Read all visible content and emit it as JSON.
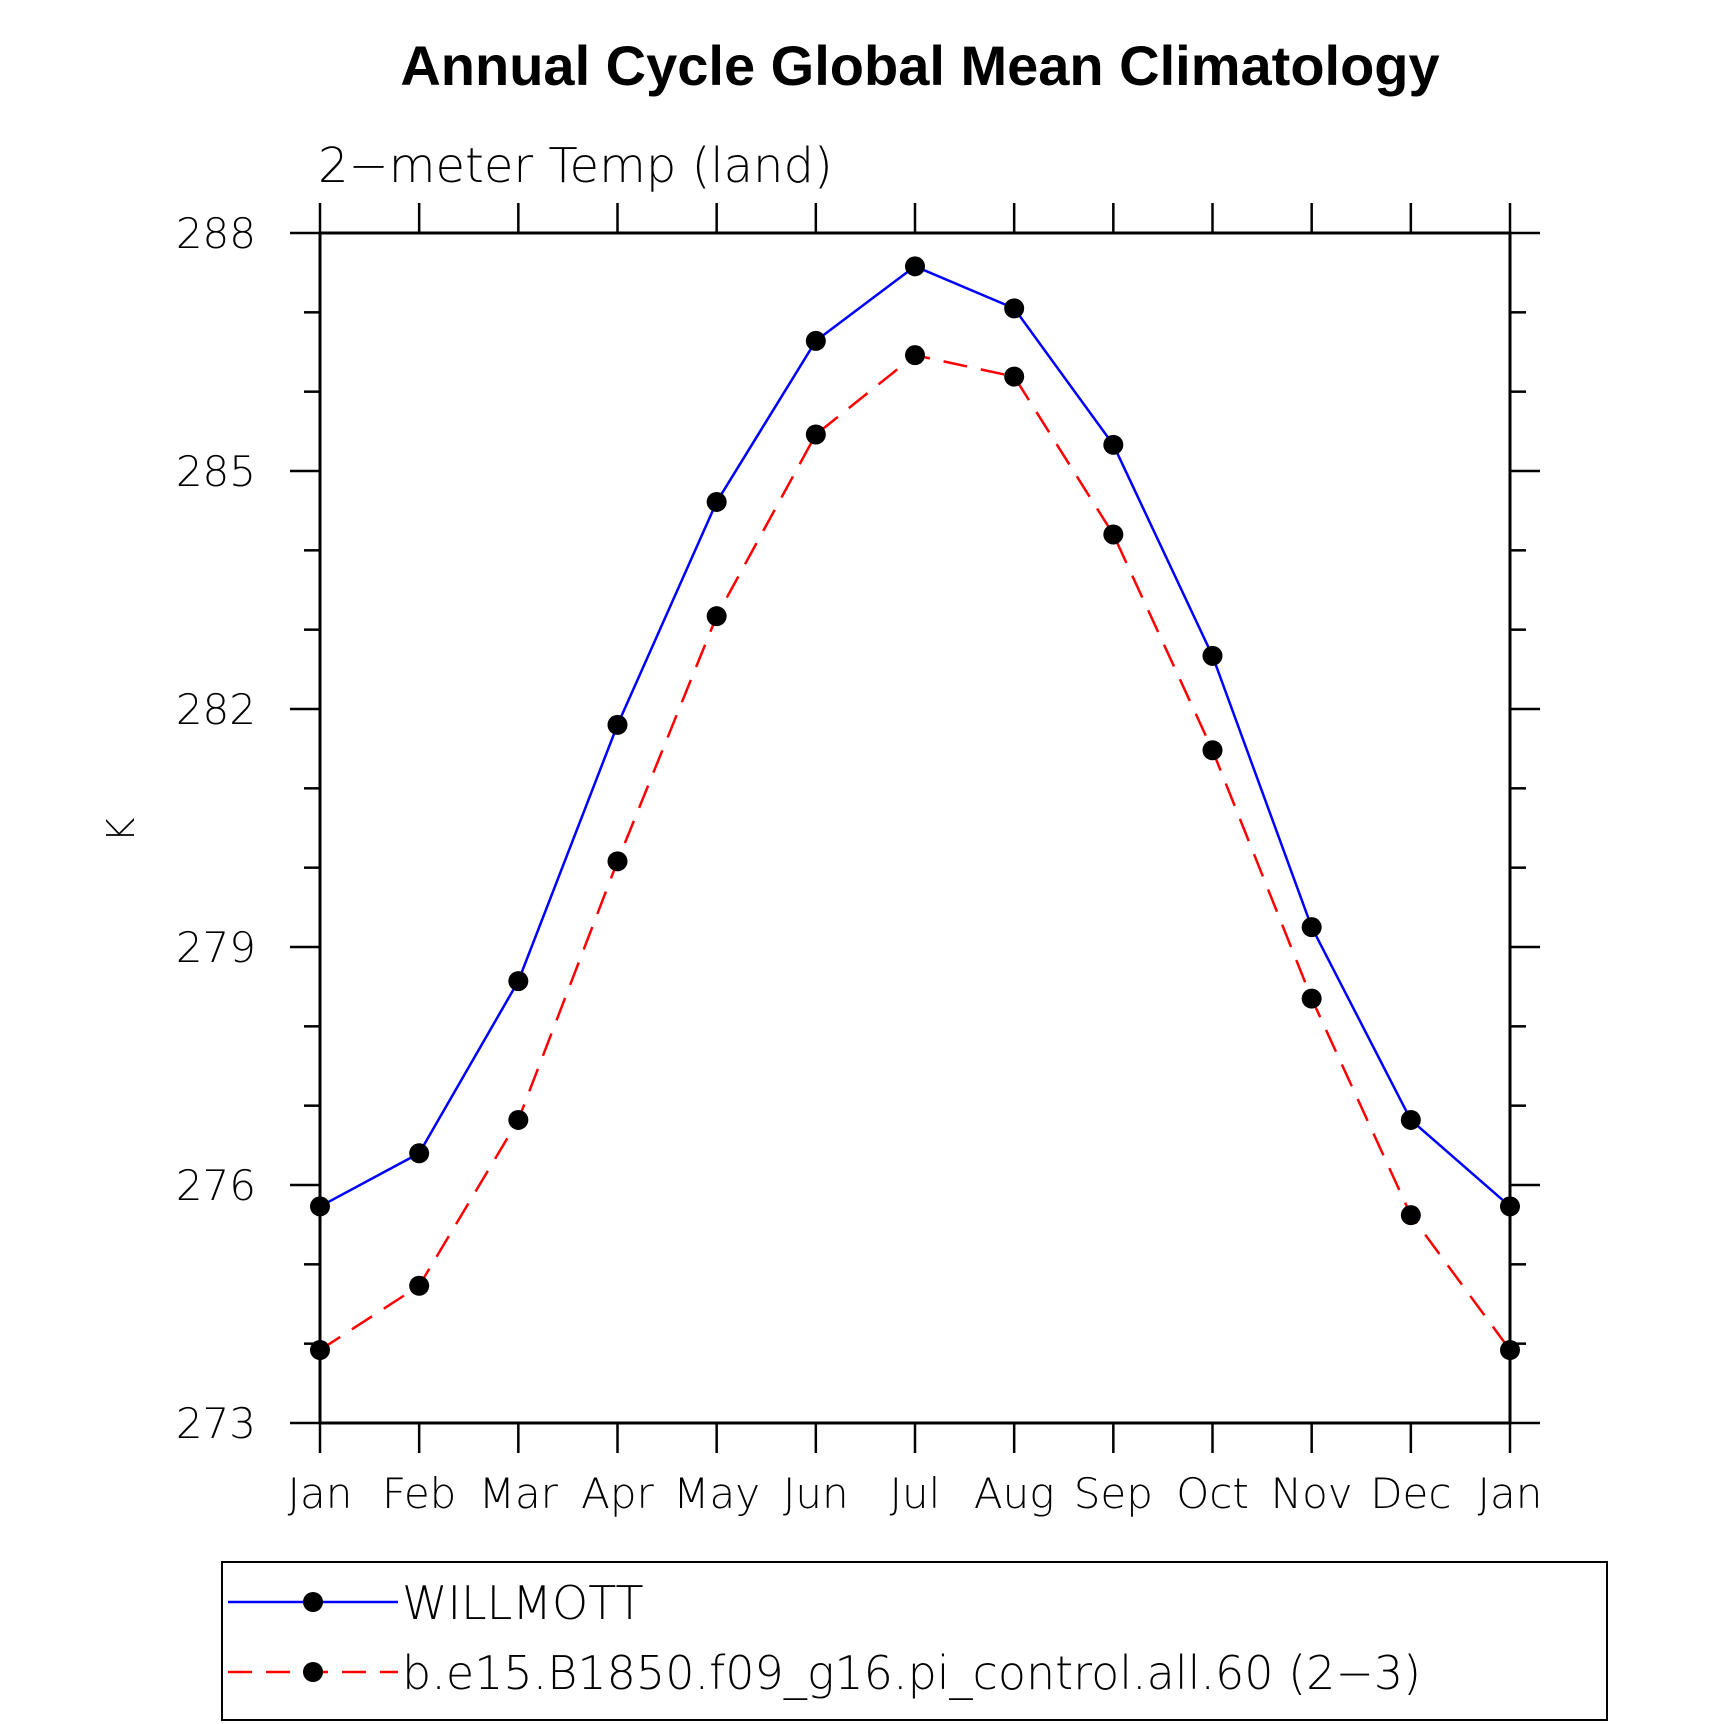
{
  "chart_data": {
    "type": "line",
    "title": "Annual Cycle Global Mean Climatology",
    "subtitle": "2−meter Temp (land)",
    "ylabel": "K",
    "xlabel": "",
    "ylim": [
      273,
      288
    ],
    "yticks": [
      "273",
      "276",
      "279",
      "282",
      "285",
      "288"
    ],
    "categories": [
      "Jan",
      "Feb",
      "Mar",
      "Apr",
      "May",
      "Jun",
      "Jul",
      "Aug",
      "Sep",
      "Oct",
      "Nov",
      "Dec",
      "Jan"
    ],
    "grid": false,
    "legend_position": "bottom",
    "series": [
      {
        "name": "WILLMOTT",
        "color": "#0000ff",
        "style": "solid",
        "marker": "circle",
        "values": [
          275.73,
          276.4,
          278.57,
          281.8,
          284.61,
          286.64,
          287.58,
          287.05,
          285.33,
          282.67,
          279.25,
          276.82,
          275.73
        ]
      },
      {
        "name": "b.e15.B1850.f09_g16.pi_control.all.60 (2−3)",
        "color": "#ff0000",
        "style": "dashed",
        "marker": "circle",
        "values": [
          273.92,
          274.73,
          276.82,
          280.08,
          283.17,
          285.46,
          286.46,
          286.19,
          284.2,
          281.48,
          278.35,
          275.62,
          273.92
        ]
      }
    ]
  }
}
